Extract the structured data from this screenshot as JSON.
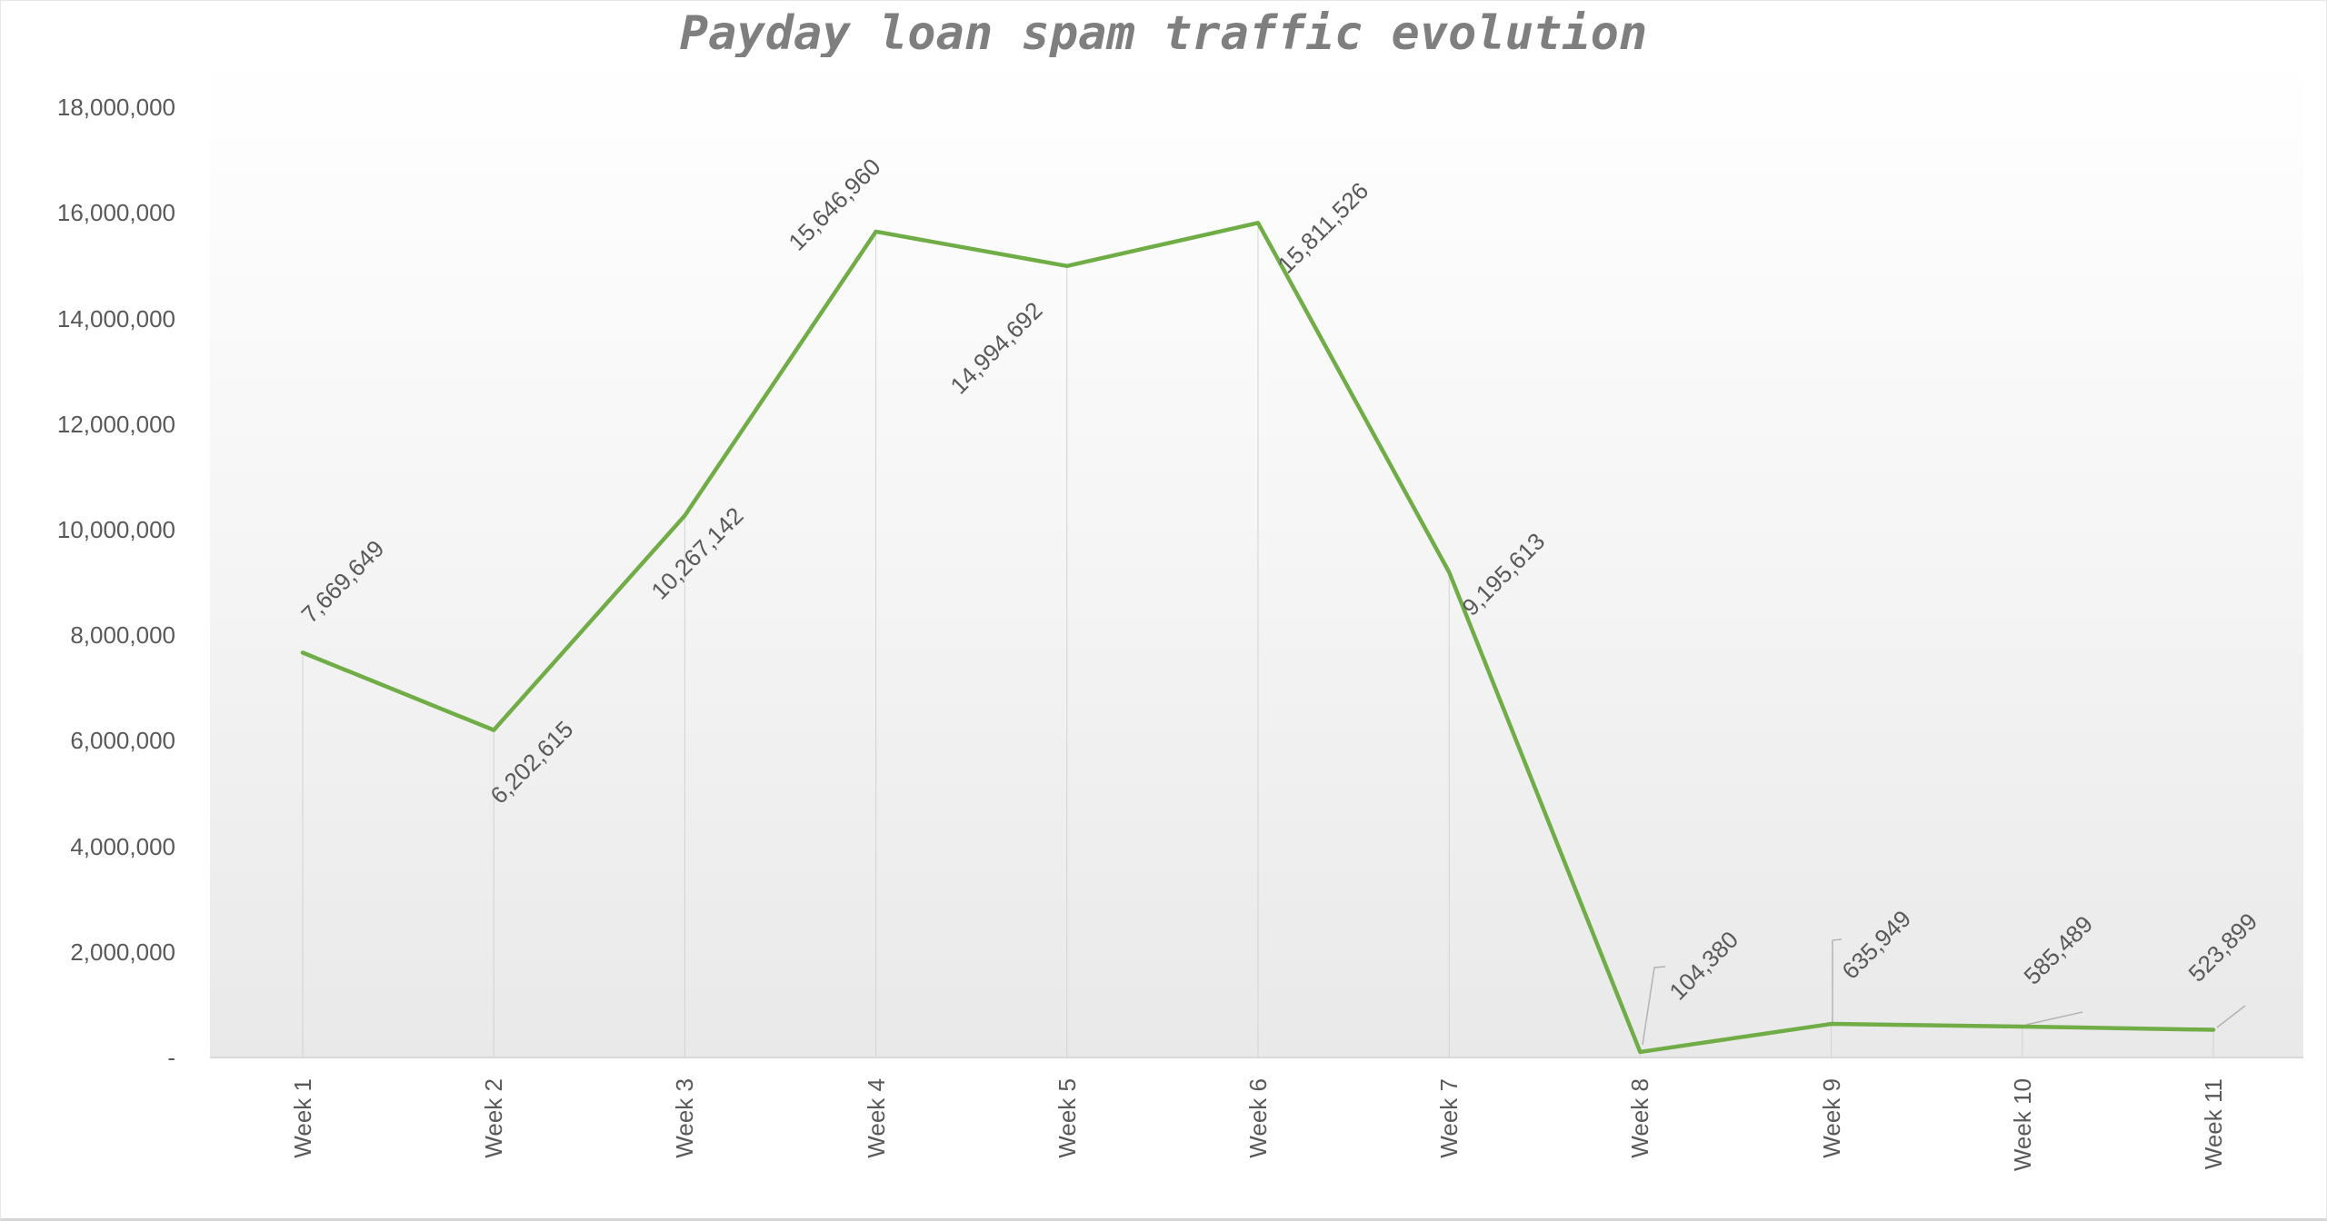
{
  "chart_data": {
    "type": "line",
    "title": "Payday loan spam traffic evolution",
    "categories": [
      "Week 1",
      "Week 2",
      "Week 3",
      "Week 4",
      "Week 5",
      "Week 6",
      "Week 7",
      "Week 8",
      "Week 9",
      "Week 10",
      "Week 11"
    ],
    "values": [
      7669649,
      6202615,
      10267142,
      15646960,
      14994692,
      15811526,
      9195613,
      104380,
      635949,
      585489,
      523899
    ],
    "data_labels": [
      "7,669,649",
      "6,202,615",
      "10,267,142",
      "15,646,960",
      "14,994,692",
      "15,811,526",
      "9,195,613",
      "104,380",
      "635,949",
      "585,489",
      "523,899"
    ],
    "y_ticks": [
      "-",
      "2,000,000",
      "4,000,000",
      "6,000,000",
      "8,000,000",
      "10,000,000",
      "12,000,000",
      "14,000,000",
      "16,000,000",
      "18,000,000"
    ],
    "y_tick_step": 2000000,
    "ylim": [
      0,
      18000000
    ],
    "xlabel": "",
    "ylabel": "",
    "grid": "off",
    "legend": "none",
    "line_color": "#70ad47",
    "drop_line_color": "#cfcfcf",
    "leader_line_color": "#b3b3b3",
    "axis_line_color": "#d9d9d9",
    "label_color": "#595959",
    "title_color": "#7f7f7f",
    "plot_bg_top": "#ffffff",
    "plot_bg_bottom": "#e9e9e9"
  }
}
